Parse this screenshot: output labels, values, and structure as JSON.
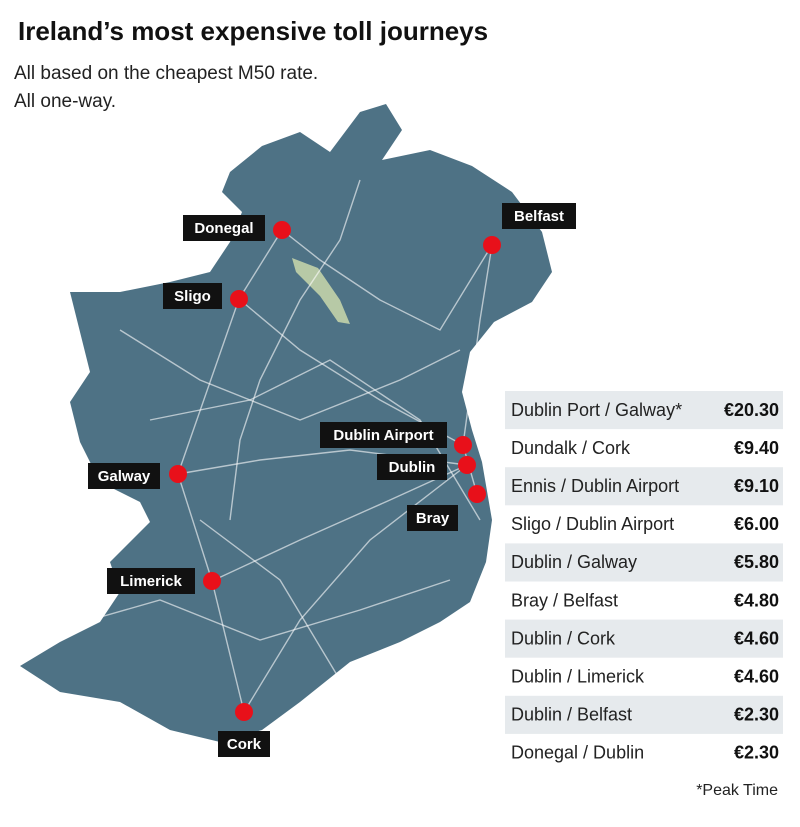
{
  "header": {
    "title": "Ireland’s most expensive toll journeys",
    "subtitle": [
      "All based on the cheapest M50 rate.",
      "All one-way."
    ]
  },
  "cities": [
    "Donegal",
    "Belfast",
    "Sligo",
    "Dublin Airport",
    "Dublin",
    "Bray",
    "Galway",
    "Limerick",
    "Cork"
  ],
  "table": {
    "rows": [
      [
        "Dublin Port / Galway*",
        "€20.30"
      ],
      [
        "Dundalk / Cork",
        "€9.40"
      ],
      [
        "Ennis / Dublin Airport",
        "€9.10"
      ],
      [
        "Sligo / Dublin Airport",
        "€6.00"
      ],
      [
        "Dublin / Galway",
        "€5.80"
      ],
      [
        "Bray / Belfast",
        "€4.80"
      ],
      [
        "Dublin / Cork",
        "€4.60"
      ],
      [
        "Dublin / Limerick",
        "€4.60"
      ],
      [
        "Dublin / Belfast",
        "€2.30"
      ],
      [
        "Donegal / Dublin",
        "€2.30"
      ]
    ]
  },
  "footnote": "*Peak Time"
}
